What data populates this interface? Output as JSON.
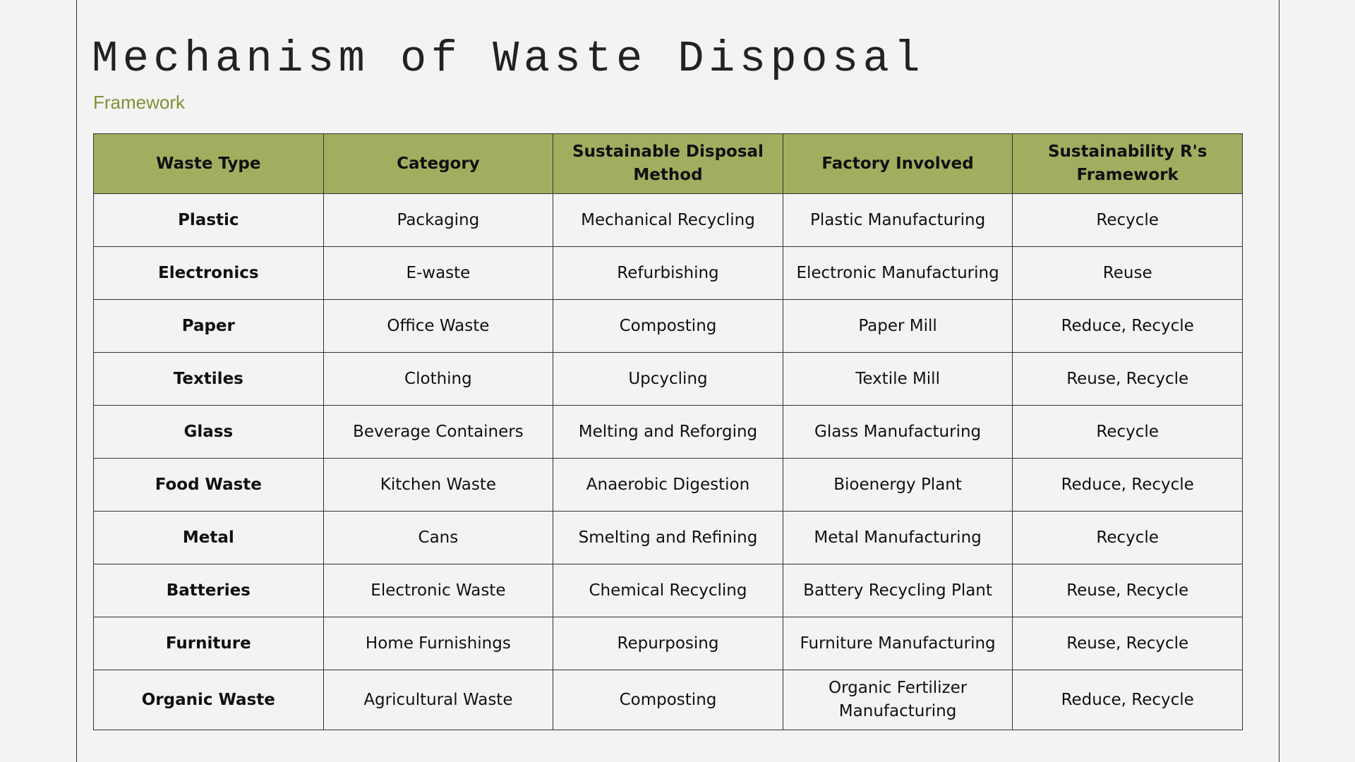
{
  "title": "Mechanism of Waste Disposal",
  "subtitle": "Framework",
  "colors": {
    "header_bg": "#a3ad5f",
    "subtitle": "#7f9134",
    "background": "#f3f3f3"
  },
  "table": {
    "headers": [
      "Waste Type",
      "Category",
      "Sustainable Disposal Method",
      "Factory Involved",
      "Sustainability R's Framework"
    ],
    "rows": [
      [
        "Plastic",
        "Packaging",
        "Mechanical Recycling",
        "Plastic Manufacturing",
        "Recycle"
      ],
      [
        "Electronics",
        "E-waste",
        "Refurbishing",
        "Electronic Manufacturing",
        "Reuse"
      ],
      [
        "Paper",
        "Office Waste",
        "Composting",
        "Paper Mill",
        "Reduce, Recycle"
      ],
      [
        "Textiles",
        "Clothing",
        "Upcycling",
        "Textile Mill",
        "Reuse, Recycle"
      ],
      [
        "Glass",
        "Beverage Containers",
        "Melting and Reforging",
        "Glass Manufacturing",
        "Recycle"
      ],
      [
        "Food Waste",
        "Kitchen Waste",
        "Anaerobic Digestion",
        "Bioenergy Plant",
        "Reduce, Recycle"
      ],
      [
        "Metal",
        "Cans",
        "Smelting and Refining",
        "Metal Manufacturing",
        "Recycle"
      ],
      [
        "Batteries",
        "Electronic Waste",
        "Chemical Recycling",
        "Battery Recycling Plant",
        "Reuse, Recycle"
      ],
      [
        "Furniture",
        "Home Furnishings",
        "Repurposing",
        "Furniture Manufacturing",
        "Reuse, Recycle"
      ],
      [
        "Organic Waste",
        "Agricultural Waste",
        "Composting",
        "Organic Fertilizer Manufacturing",
        "Reduce, Recycle"
      ]
    ]
  }
}
